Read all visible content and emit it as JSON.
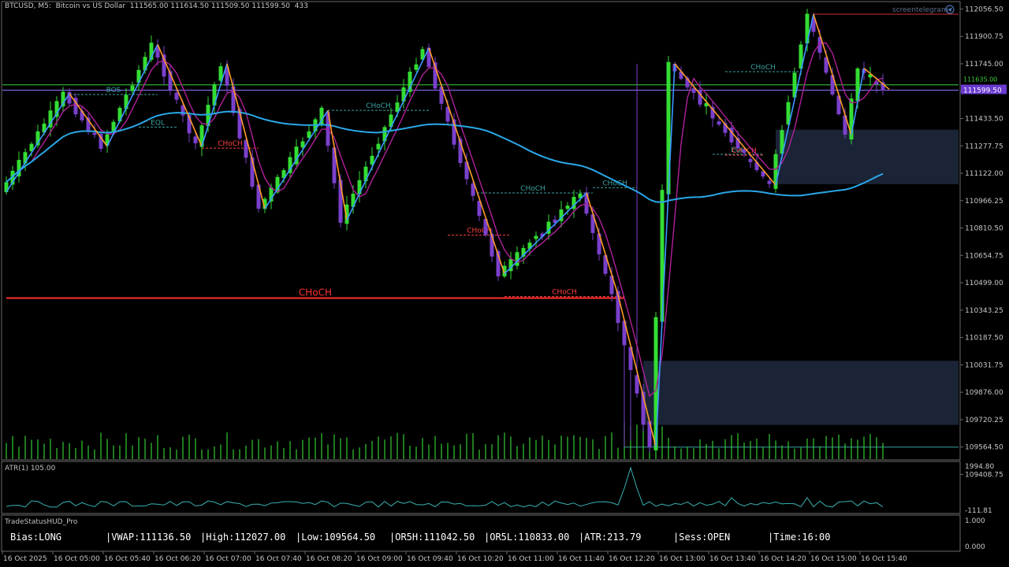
{
  "header": {
    "symbol_line": "BTCUSD, M5:  Bitcoin vs US Dollar  111565.00 111614.50 111509.50 111599.50  433",
    "watermark": "screentelegram"
  },
  "chart_data": {
    "type": "candlestick",
    "symbol": "BTCUSD",
    "timeframe": "M5",
    "ylim": [
      109500,
      112090
    ],
    "current_price": 111599.5,
    "current_price_label": "111599.50",
    "current_price_label_upper": "111635.00",
    "price_ticks": [
      "112056.50",
      "111900.75",
      "111745.00",
      "111589.25",
      "111433.50",
      "111277.75",
      "111122.00",
      "110966.25",
      "110810.50",
      "110654.75",
      "110499.00",
      "110343.25",
      "110187.50",
      "110031.75",
      "109876.00",
      "109720.25",
      "109564.50",
      "109408.75"
    ],
    "time_ticks": [
      "16 Oct 2025",
      "16 Oct 05:00",
      "16 Oct 05:40",
      "16 Oct 06:20",
      "16 Oct 07:00",
      "16 Oct 07:40",
      "16 Oct 08:20",
      "16 Oct 09:00",
      "16 Oct 09:40",
      "16 Oct 10:20",
      "16 Oct 11:00",
      "16 Oct 11:40",
      "16 Oct 12:20",
      "16 Oct 13:00",
      "16 Oct 13:40",
      "16 Oct 14:20",
      "16 Oct 15:00",
      "16 Oct 15:40"
    ],
    "candle_count": 140,
    "zigzag": [
      [
        0,
        111015
      ],
      [
        10,
        111575
      ],
      [
        16,
        111275
      ],
      [
        24,
        111855
      ],
      [
        31,
        111275
      ],
      [
        35,
        111745
      ],
      [
        41,
        110920
      ],
      [
        51,
        111480
      ],
      [
        54,
        110855
      ],
      [
        67,
        111835
      ],
      [
        79,
        110550
      ],
      [
        92,
        111010
      ],
      [
        97,
        110430
      ],
      [
        103,
        109564
      ],
      [
        106,
        111745
      ],
      [
        122,
        111055
      ],
      [
        128,
        112027
      ],
      [
        134,
        111340
      ],
      [
        136,
        111720
      ],
      [
        140,
        111600
      ]
    ],
    "levels": [
      {
        "label": "CHoCH",
        "price": 110412,
        "color": "#ff3030",
        "from": 0,
        "to": 98,
        "size": "large"
      },
      {
        "label": "CHoCH",
        "price": 111595,
        "color": "#9070ff",
        "from": 0,
        "to": 140,
        "size": "line"
      },
      {
        "label": "BOS",
        "price": 111570,
        "color": "#3aa0a0",
        "from": 10,
        "to": 24
      },
      {
        "label": "EQL",
        "price": 111385,
        "color": "#3aa0a0",
        "from": 21,
        "to": 27
      },
      {
        "label": "CHoCH",
        "price": 111265,
        "color": "#ff4040",
        "from": 31,
        "to": 40
      },
      {
        "label": "CHoCH",
        "price": 111480,
        "color": "#3aa0a0",
        "from": 51,
        "to": 67
      },
      {
        "label": "CHoCH",
        "price": 111010,
        "color": "#3aa0a0",
        "from": 74,
        "to": 93
      },
      {
        "label": "CHoCH",
        "price": 110770,
        "color": "#ff4040",
        "from": 70,
        "to": 80
      },
      {
        "label": "CHoCH",
        "price": 110420,
        "color": "#ff4040",
        "from": 79,
        "to": 98
      },
      {
        "label": "CHoCH",
        "price": 111040,
        "color": "#3aa0a0",
        "from": 93,
        "to": 100
      },
      {
        "label": "CHoCH",
        "price": 111700,
        "color": "#3aa0a0",
        "from": 114,
        "to": 126
      },
      {
        "label": "EQL",
        "price": 111230,
        "color": "#3aa0a0",
        "from": 112,
        "to": 120
      },
      {
        "label": "CHoCH",
        "price": 111225,
        "color": "#ff4040",
        "from": 114,
        "to": 120
      }
    ],
    "zones": [
      {
        "from": 101,
        "to": 152,
        "low": 109690,
        "high": 110055
      },
      {
        "from": 122,
        "to": 152,
        "low": 111060,
        "high": 111370
      }
    ],
    "atr_label": "ATR(1) 105.00",
    "atr_ticks": [
      "1994.80",
      "-111.81"
    ],
    "hud_ticks": [
      "1.000",
      "0.000"
    ],
    "vwap_color": "#2aa8e8",
    "bull_color": "#33dd33",
    "bear_color": "#7a40cc"
  },
  "hud": {
    "title": "TradeStatusHUD_Pro",
    "bias": "Bias:LONG",
    "vwap": "|VWAP:111136.50",
    "high": "|High:112027.00",
    "low": "|Low:109564.50",
    "orh": "|OR5H:111042.50",
    "orl": "|OR5L:110833.00",
    "atr": "|ATR:213.79",
    "sess": "|Sess:OPEN",
    "time": "|Time:16:00"
  }
}
